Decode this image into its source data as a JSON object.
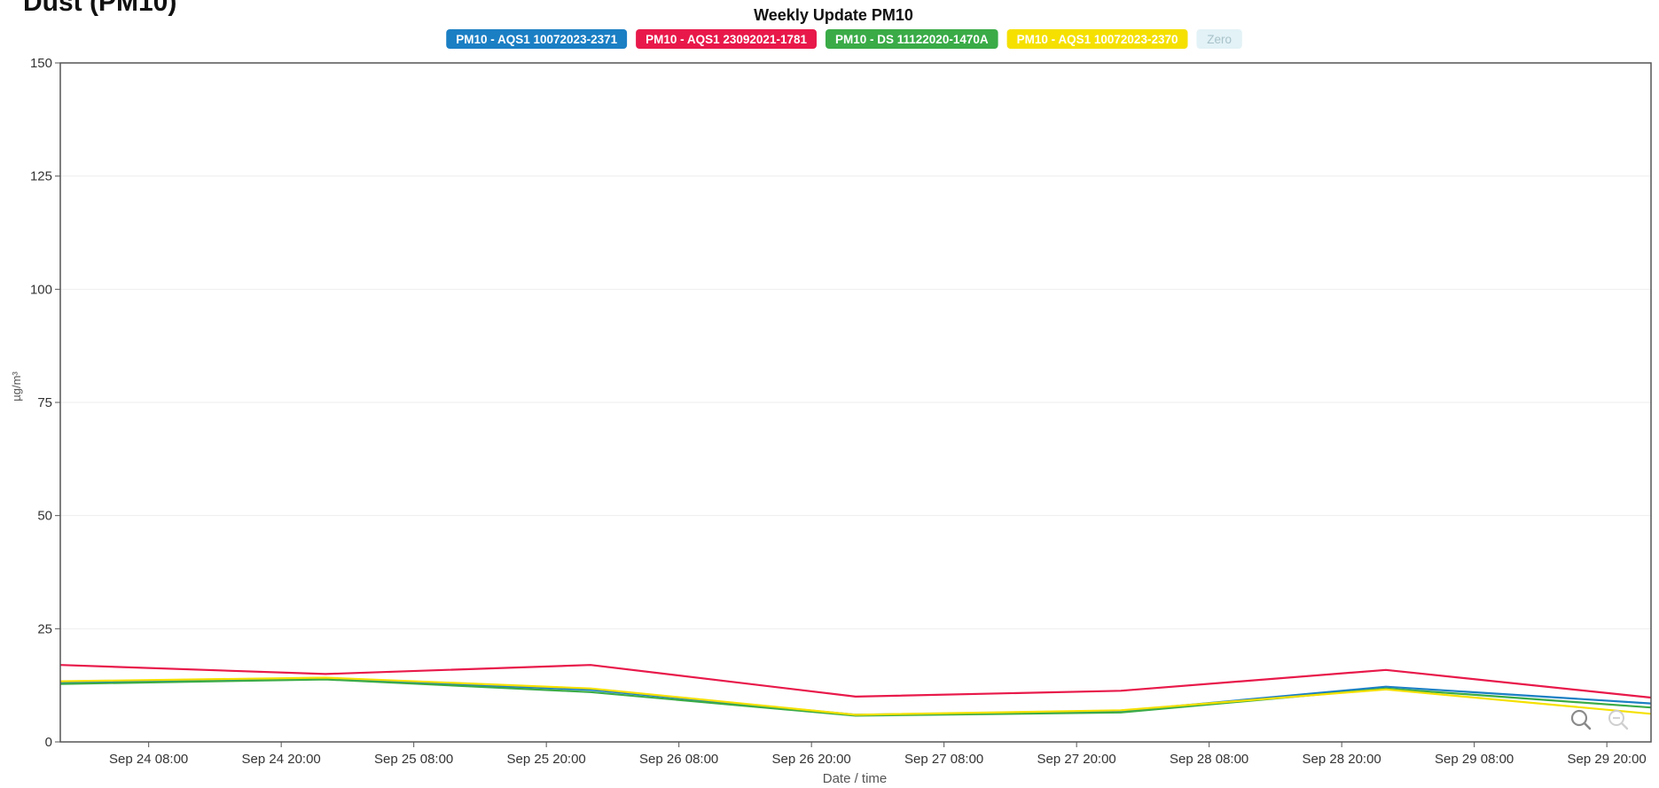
{
  "page": {
    "heading": "Dust (PM10)"
  },
  "colors": {
    "axis": "#555555",
    "grid": "#eeeeee",
    "tick_text": "#333333",
    "label_text": "#555555"
  },
  "toolbar": {
    "zoom_in_icon": "magnifier-icon",
    "zoom_out_icon": "magnifier-minus-icon"
  },
  "chart_data": {
    "type": "line",
    "title": "Weekly Update PM10",
    "xlabel": "Date / time",
    "ylabel": "µg/m³",
    "ylim": [
      0,
      150
    ],
    "yticks": [
      0,
      25,
      50,
      75,
      100,
      125,
      150
    ],
    "grid": true,
    "legend": "top",
    "x_ticks": [
      {
        "label": "Sep 24 08:00",
        "t": "2023-09-24T08:00"
      },
      {
        "label": "Sep 24 20:00",
        "t": "2023-09-24T20:00"
      },
      {
        "label": "Sep 25 08:00",
        "t": "2023-09-25T08:00"
      },
      {
        "label": "Sep 25 20:00",
        "t": "2023-09-25T20:00"
      },
      {
        "label": "Sep 26 08:00",
        "t": "2023-09-26T08:00"
      },
      {
        "label": "Sep 26 20:00",
        "t": "2023-09-26T20:00"
      },
      {
        "label": "Sep 27 08:00",
        "t": "2023-09-27T08:00"
      },
      {
        "label": "Sep 27 20:00",
        "t": "2023-09-27T20:00"
      },
      {
        "label": "Sep 28 08:00",
        "t": "2023-09-28T08:00"
      },
      {
        "label": "Sep 28 20:00",
        "t": "2023-09-28T20:00"
      },
      {
        "label": "Sep 29 08:00",
        "t": "2023-09-29T08:00"
      },
      {
        "label": "Sep 29 20:00",
        "t": "2023-09-29T20:00"
      }
    ],
    "x": [
      "2023-09-24T00:00",
      "2023-09-25T00:00",
      "2023-09-26T00:00",
      "2023-09-27T00:00",
      "2023-09-28T00:00",
      "2023-09-29T00:00",
      "2023-09-30T00:00"
    ],
    "xlim": [
      "2023-09-24T00:00",
      "2023-09-30T00:00"
    ],
    "series": [
      {
        "name": "PM10 - AQS1 10072023-2371",
        "color": "#1b7fc4",
        "values": [
          13,
          14,
          11.5,
          6,
          6.8,
          12.2,
          8.5
        ]
      },
      {
        "name": "PM10 - AQS1 23092021-1781",
        "color": "#e8194a",
        "values": [
          17,
          15,
          17,
          10,
          11.3,
          15.9,
          9.8
        ]
      },
      {
        "name": "PM10 - DS 11122020-1470A",
        "color": "#3aab47",
        "values": [
          12.8,
          13.8,
          11,
          5.8,
          6.5,
          11.8,
          7.6
        ]
      },
      {
        "name": "PM10 - AQS1 10072023-2370",
        "color": "#f5e000",
        "values": [
          13.4,
          14.2,
          11.8,
          6,
          7,
          11.6,
          6.2
        ]
      },
      {
        "name": "Zero",
        "color": "#e2f2f6",
        "text_color": "#a8c2ca",
        "hidden": true,
        "values": [
          0,
          0,
          0,
          0,
          0,
          0,
          0
        ]
      }
    ]
  }
}
